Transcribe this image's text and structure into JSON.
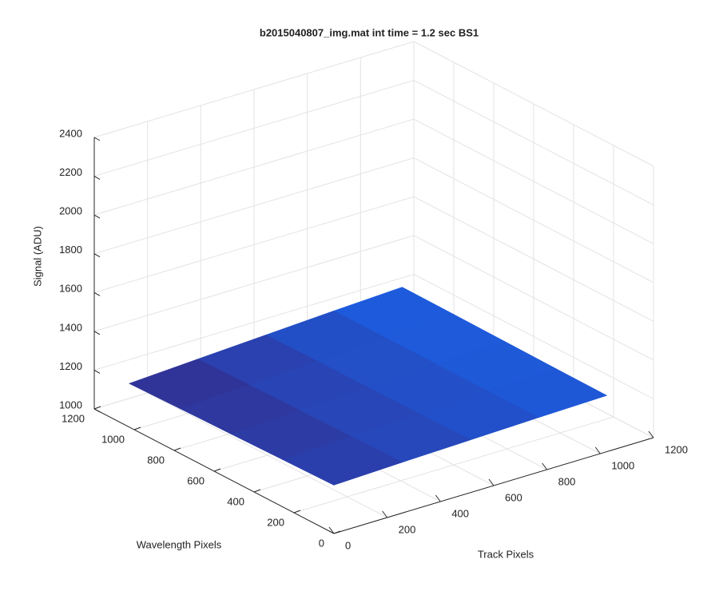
{
  "chart_data": {
    "type": "surface",
    "title": "b2015040807_img.mat int time = 1.2 sec   BS1",
    "xlabel": "Track Pixels",
    "ylabel": "Wavelength Pixels",
    "zlabel": "Signal (ADU)",
    "x": [
      0,
      256,
      512,
      768,
      1024
    ],
    "y": [
      0,
      256,
      512,
      768,
      1024
    ],
    "z": [
      [
        1250,
        1262,
        1272,
        1282,
        1290
      ],
      [
        1244,
        1258,
        1270,
        1282,
        1292
      ],
      [
        1238,
        1254,
        1268,
        1282,
        1295
      ],
      [
        1232,
        1250,
        1266,
        1283,
        1298
      ],
      [
        1225,
        1245,
        1264,
        1283,
        1300
      ]
    ],
    "xlim": [
      0,
      1200
    ],
    "ylim": [
      0,
      1200
    ],
    "zlim": [
      1000,
      2400
    ],
    "xticks": [
      0,
      200,
      400,
      600,
      800,
      1000,
      1200
    ],
    "yticks": [
      0,
      200,
      400,
      600,
      800,
      1000,
      1200
    ],
    "zticks": [
      1000,
      1200,
      1400,
      1600,
      1800,
      2000,
      2200,
      2400
    ],
    "grid": true,
    "colormap": [
      "#352a87",
      "#1a62e8"
    ]
  }
}
